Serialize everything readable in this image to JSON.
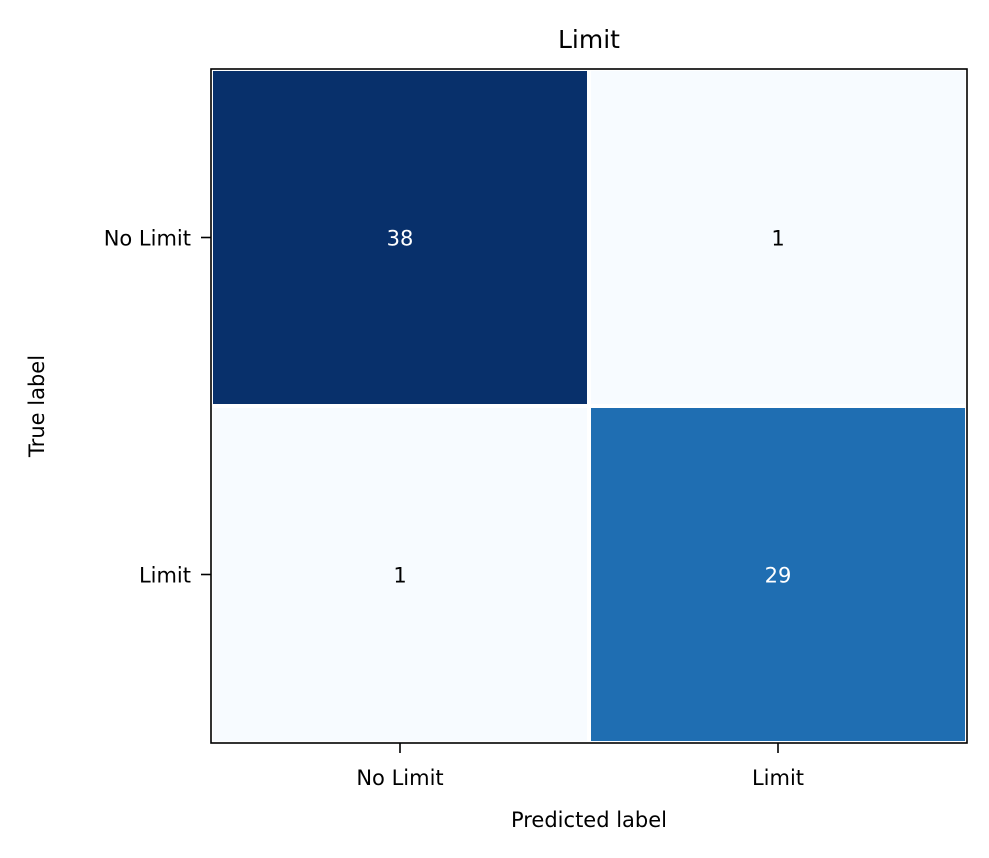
{
  "chart_data": {
    "type": "heatmap",
    "title": "Limit",
    "xlabel": "Predicted label",
    "ylabel": "True label",
    "x_categories": [
      "No Limit",
      "Limit"
    ],
    "y_categories": [
      "No Limit",
      "Limit"
    ],
    "values": [
      [
        38,
        1
      ],
      [
        1,
        29
      ]
    ],
    "colormap": "Blues",
    "color_low": "#f7fbff",
    "color_mid": "#2070b4",
    "color_high": "#08306b",
    "text_color_dark_cells": "#ffffff",
    "text_color_light_cells": "#000000",
    "grid": false,
    "legend": "none"
  }
}
